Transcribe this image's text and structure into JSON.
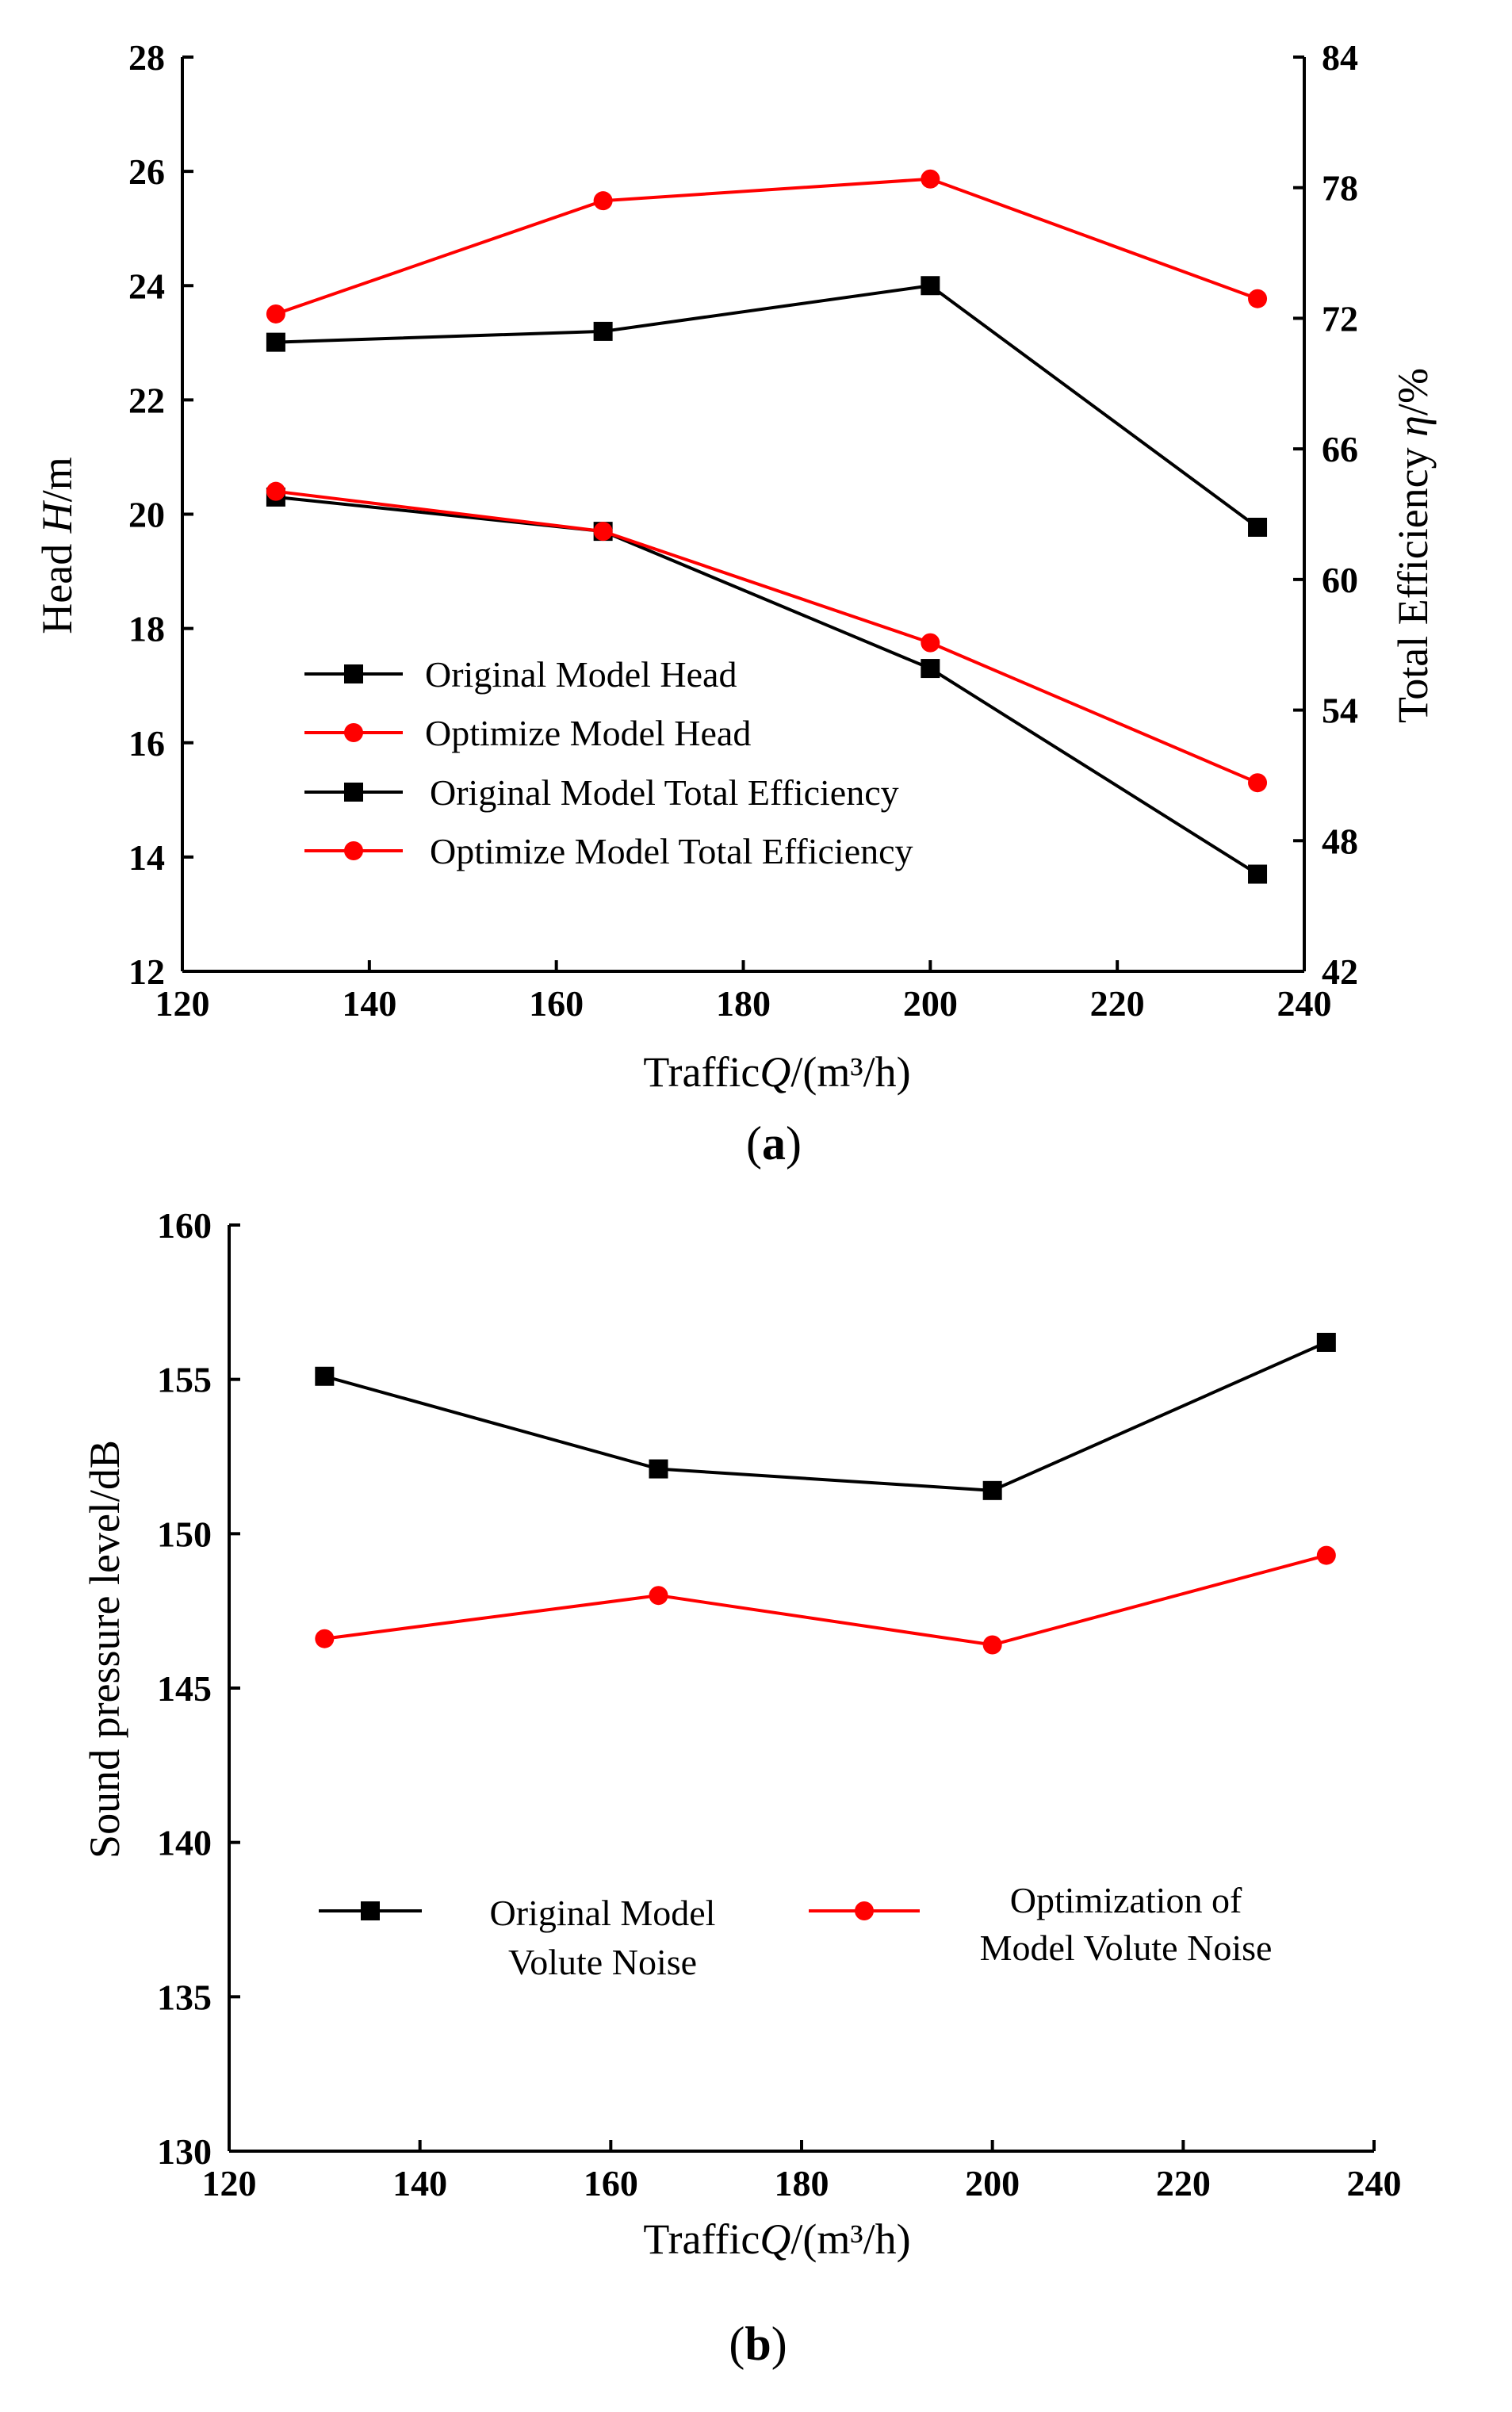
{
  "figure": {
    "panel_a_label": "a",
    "panel_b_label": "b"
  },
  "chart_data": [
    {
      "type": "line",
      "panel": "a",
      "title": "",
      "xlabel": "TrafficQ/(m³/h)",
      "xlabel_parts": {
        "prefix": "Traffic",
        "italic": "Q",
        "suffix": "/(m³/h)"
      },
      "ylabel": "Head H/m",
      "ylabel_parts": {
        "prefix": "Head ",
        "italic": "H",
        "suffix": "/m"
      },
      "y2label": "Total Efficiency η/%",
      "y2label_parts": {
        "prefix": "Total Efficiency ",
        "italic": "η",
        "suffix": "/%"
      },
      "xlim": [
        120,
        240
      ],
      "ylim": [
        12,
        28
      ],
      "y2lim": [
        42,
        84
      ],
      "xticks": [
        "120",
        "140",
        "160",
        "180",
        "200",
        "220",
        "240"
      ],
      "yticks": [
        "12",
        "14",
        "16",
        "18",
        "20",
        "22",
        "24",
        "26",
        "28"
      ],
      "y2ticks": [
        "42",
        "48",
        "54",
        "60",
        "66",
        "72",
        "78",
        "84"
      ],
      "legend_position": "center-left",
      "x": [
        130,
        165,
        200,
        235
      ],
      "series": [
        {
          "name": "Original Model Head",
          "axis": "left",
          "color": "#000000",
          "marker": "square",
          "values": [
            20.3,
            19.7,
            17.3,
            13.7
          ]
        },
        {
          "name": "Optimize Model Head",
          "axis": "left",
          "color": "#ff0000",
          "marker": "circle",
          "values": [
            20.4,
            19.7,
            17.75,
            15.3
          ]
        },
        {
          "name": "Original Model Total Efficiency",
          "axis": "right",
          "color": "#000000",
          "marker": "square",
          "values": [
            70.9,
            71.4,
            73.5,
            62.4
          ]
        },
        {
          "name": "Optimize Model Total Efficiency",
          "axis": "right",
          "color": "#ff0000",
          "marker": "circle",
          "values": [
            72.2,
            77.4,
            78.4,
            72.9
          ]
        }
      ]
    },
    {
      "type": "line",
      "panel": "b",
      "title": "",
      "xlabel": "TrafficQ/(m³/h)",
      "xlabel_parts": {
        "prefix": "Traffic",
        "italic": "Q",
        "suffix": "/(m³/h)"
      },
      "ylabel": "Sound pressure level/dB",
      "xlim": [
        120,
        240
      ],
      "ylim": [
        130,
        160
      ],
      "xticks": [
        "120",
        "140",
        "160",
        "180",
        "200",
        "220",
        "240"
      ],
      "yticks": [
        "130",
        "135",
        "140",
        "145",
        "150",
        "155",
        "160"
      ],
      "legend_position": "bottom-center",
      "x": [
        130,
        165,
        200,
        235
      ],
      "series": [
        {
          "name": "Original Model Volute Noise",
          "legend_lines": [
            "Original Model",
            "Volute Noise"
          ],
          "color": "#000000",
          "marker": "square",
          "values": [
            155.1,
            152.1,
            151.4,
            156.2
          ]
        },
        {
          "name": "Optimization of Model Volute Noise",
          "legend_lines": [
            "Optimization of",
            "Model Volute Noise"
          ],
          "color": "#ff0000",
          "marker": "circle",
          "values": [
            146.6,
            148.0,
            146.4,
            149.3
          ]
        }
      ]
    }
  ]
}
